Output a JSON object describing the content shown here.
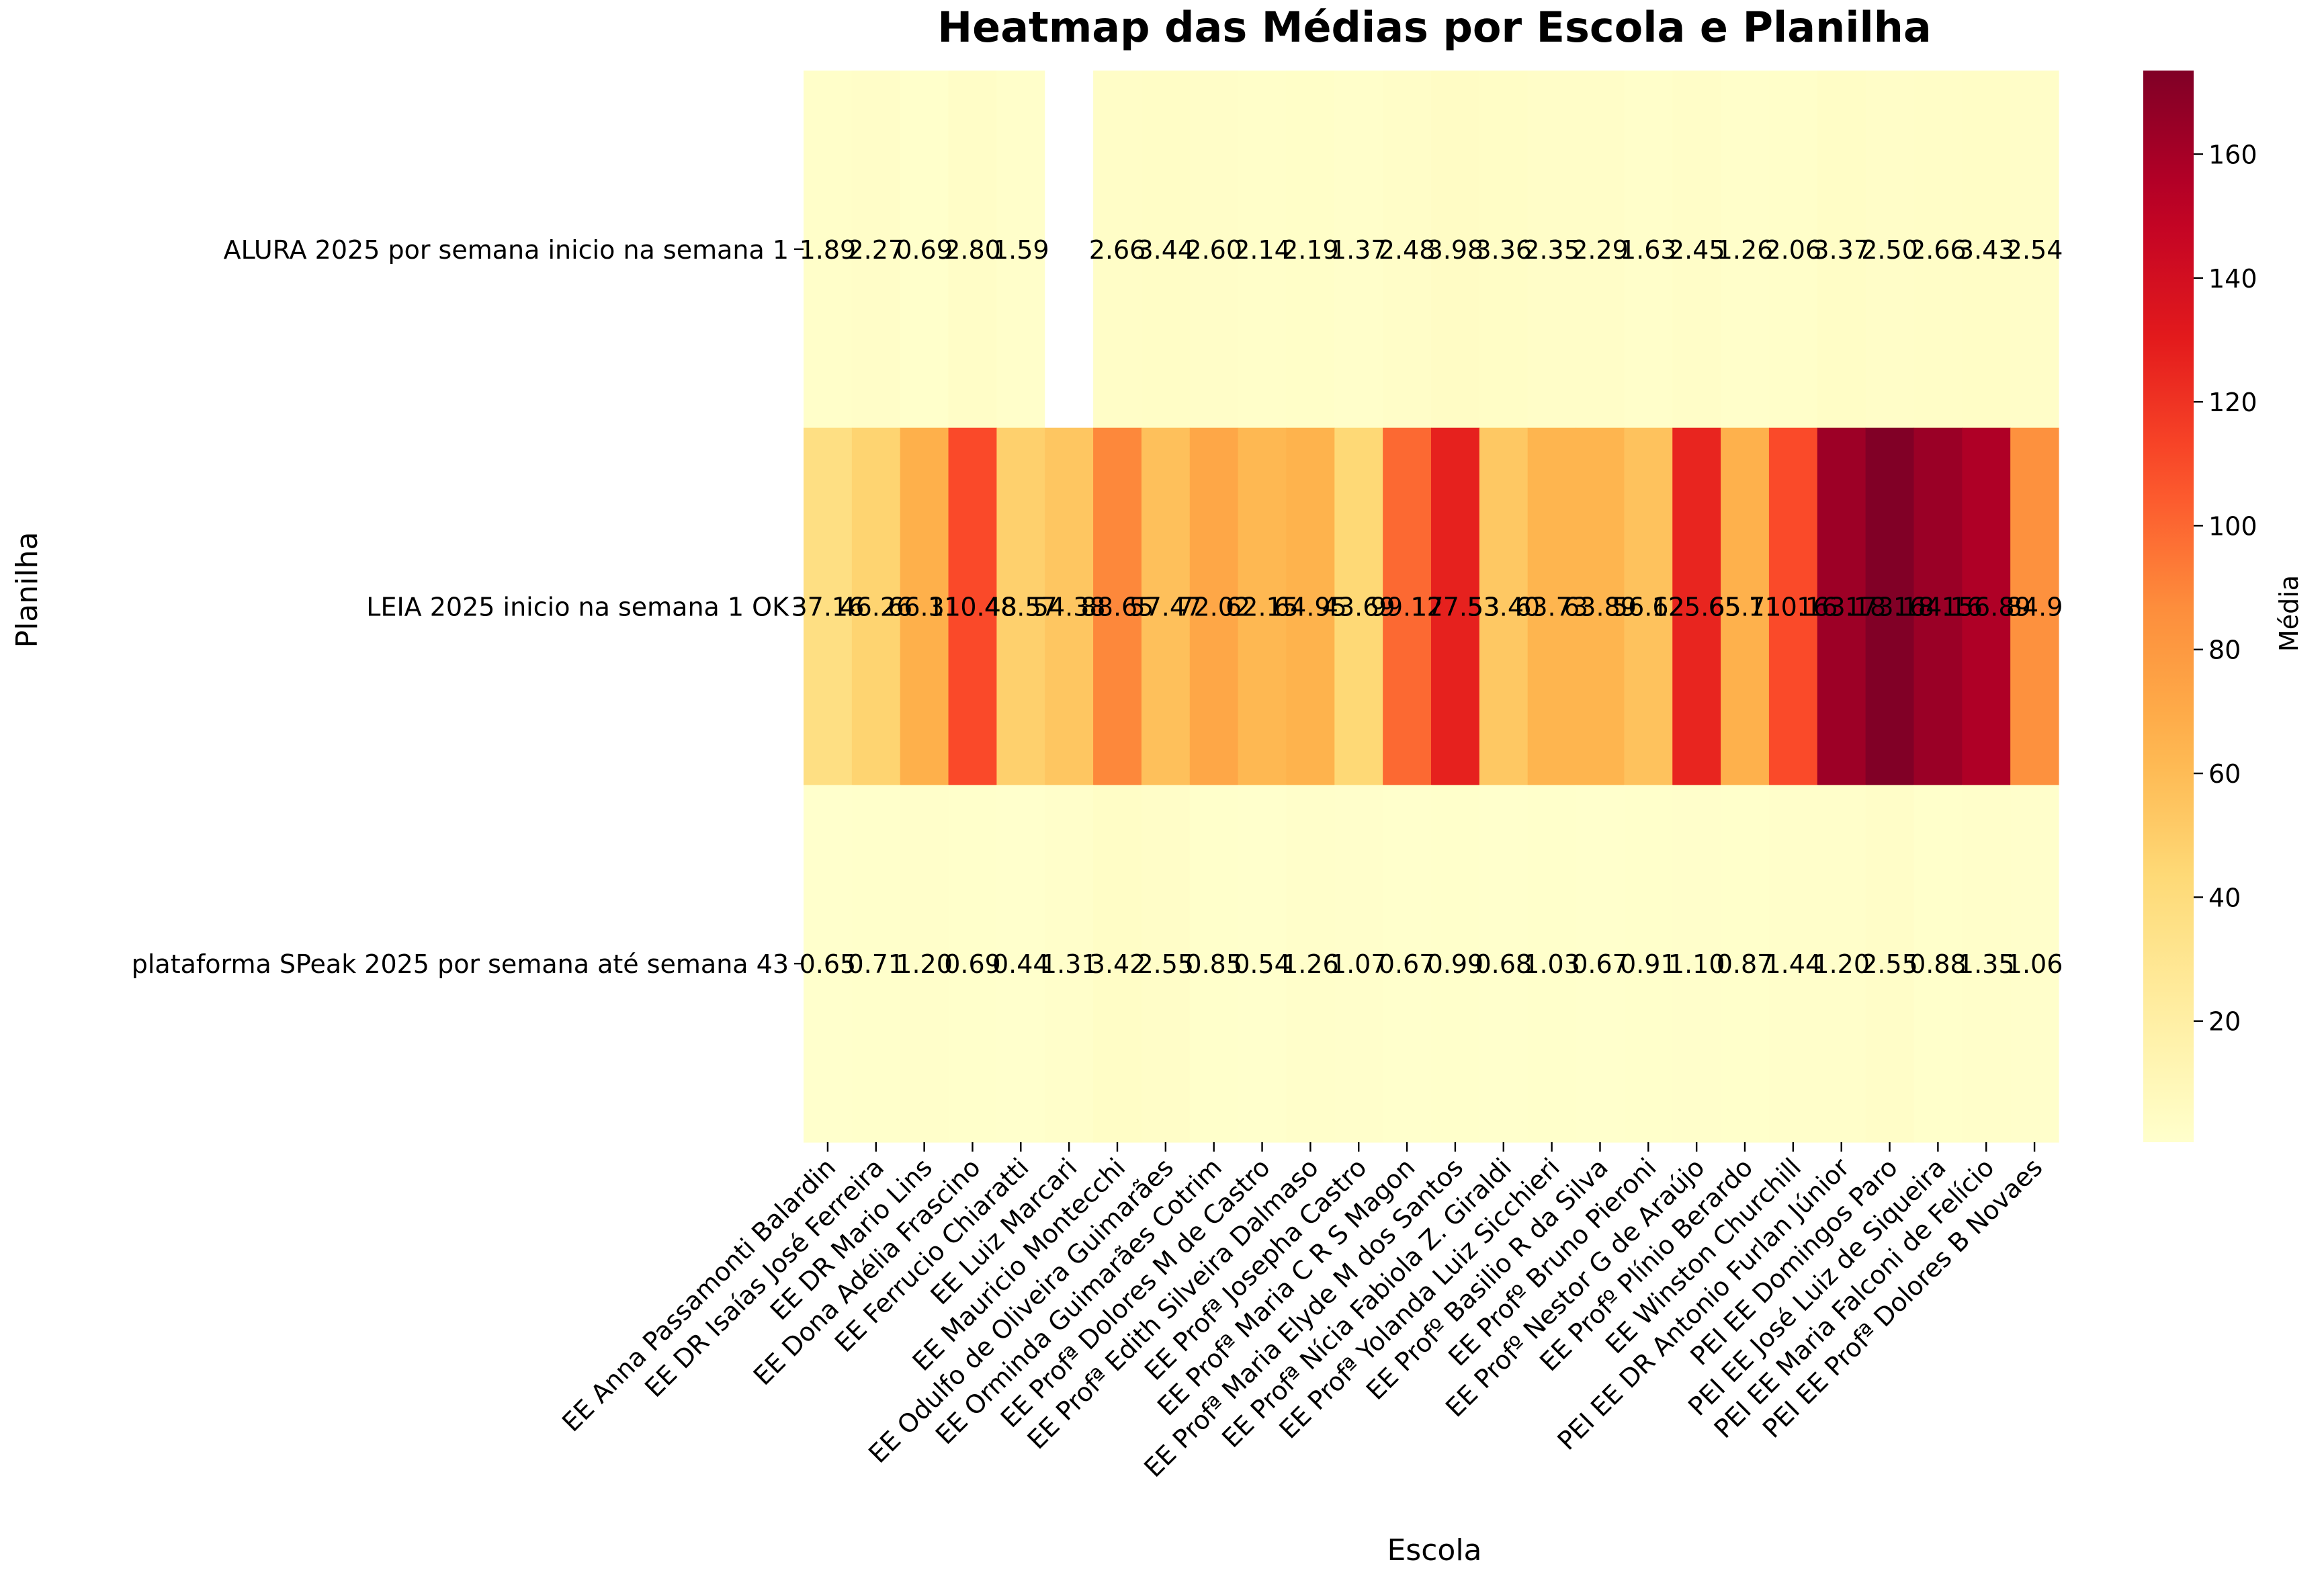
{
  "chart_data": {
    "type": "heatmap",
    "title": "Heatmap das Médias por Escola e Planilha",
    "xlabel": "Escola",
    "ylabel": "Planilha",
    "colorbar_label": "Média",
    "colormap": "YlOrRd",
    "color_range": [
      0.44,
      173.5
    ],
    "colorbar_ticks": [
      20,
      40,
      60,
      80,
      100,
      120,
      140,
      160
    ],
    "columns": [
      "EE Anna Passamonti Balardin",
      "EE DR Isaías José Ferreira",
      "EE DR Mario Lins",
      "EE Dona Adélia Frascino",
      "EE Ferrucio Chiaratti",
      "EE Luiz Marcari",
      "EE Mauricio Montecchi",
      "EE Odulfo de Oliveira Guimarães",
      "EE Orminda Guimarães Cotrim",
      "EE Profª Dolores M de Castro",
      "EE Profª Edith Silveira Dalmaso",
      "EE Profª Josepha Castro",
      "EE Profª Maria C R S Magon",
      "EE Profª Maria Elyde M dos Santos",
      "EE Profª Nícia Fabiola Z. Giraldi",
      "EE Profª Yolanda Luiz Sicchieri",
      "EE Profº Basilio R da Silva",
      "EE Profº Bruno Pieroni",
      "EE Profº Nestor G de Araújo",
      "EE Profº Plínio Berardo",
      "EE Winston Churchill",
      "PEI EE DR Antonio Furlan Júnior",
      "PEI EE Domingos Paro",
      "PEI EE José Luiz de Siqueira",
      "PEI EE Maria Falconi de Felício",
      "PEI EE Profª Dolores B Novaes"
    ],
    "rows": [
      "ALURA 2025  por semana inicio na semana 1",
      "LEIA 2025 inicio na semana 1  OK",
      "plataforma SPeak 2025 por semana até semana 43"
    ],
    "values": [
      [
        1.89,
        2.27,
        0.69,
        2.8,
        1.59,
        null,
        2.66,
        3.44,
        2.6,
        2.14,
        2.19,
        1.37,
        2.48,
        3.98,
        3.36,
        2.35,
        2.29,
        1.63,
        2.45,
        1.26,
        2.06,
        3.37,
        2.5,
        2.66,
        3.43,
        2.54
      ],
      [
        37.16,
        46.26,
        66.31,
        110.48,
        48.57,
        54.38,
        88.65,
        57.47,
        72.02,
        62.15,
        64.95,
        43.69,
        99.17,
        127.53,
        53.4,
        63.73,
        63.89,
        56.62,
        125.65,
        65.71,
        110.16,
        163.18,
        173.18,
        164.16,
        156.89,
        84.9
      ],
      [
        0.65,
        0.71,
        1.2,
        0.69,
        0.44,
        1.31,
        3.42,
        2.55,
        0.85,
        0.54,
        1.26,
        1.07,
        0.67,
        0.99,
        0.68,
        1.03,
        0.67,
        0.91,
        1.1,
        0.87,
        1.44,
        1.2,
        2.55,
        0.88,
        1.35,
        1.06
      ]
    ],
    "cell_labels": [
      [
        "1.89",
        "2.27",
        "0.69",
        "2.80",
        "1.59",
        "",
        "2.66",
        "3.44",
        "2.60",
        "2.14",
        "2.19",
        "1.37",
        "2.48",
        "3.98",
        "3.36",
        "2.35",
        "2.29",
        "1.63",
        "2.45",
        "1.26",
        "2.06",
        "3.37",
        "2.50",
        "2.66",
        "3.43",
        "2.54"
      ],
      [
        "37.16",
        "46.26",
        "66.31",
        "110.48",
        "48.57",
        "54.38",
        "88.65",
        "57.47",
        "72.02",
        "62.15",
        "64.95",
        "43.69",
        "99.17",
        "127.53",
        "53.40",
        "63.73",
        "63.89",
        "56.62",
        "125.65",
        "65.71",
        "110.16",
        "163.18",
        "173.18",
        "164.16",
        "156.89",
        "84.9"
      ],
      [
        "0.65",
        "0.71",
        "1.20",
        "0.69",
        "0.44",
        "1.31",
        "3.42",
        "2.55",
        "0.85",
        "0.54",
        "1.26",
        "1.07",
        "0.67",
        "0.99",
        "0.68",
        "1.03",
        "0.67",
        "0.91",
        "1.10",
        "0.87",
        "1.44",
        "1.20",
        "2.55",
        "0.88",
        "1.35",
        "1.06"
      ]
    ],
    "colors": {
      "annotation_dark": "#000000",
      "annotation_light": "#ffffff",
      "missing_cell": "#ffffff"
    }
  }
}
